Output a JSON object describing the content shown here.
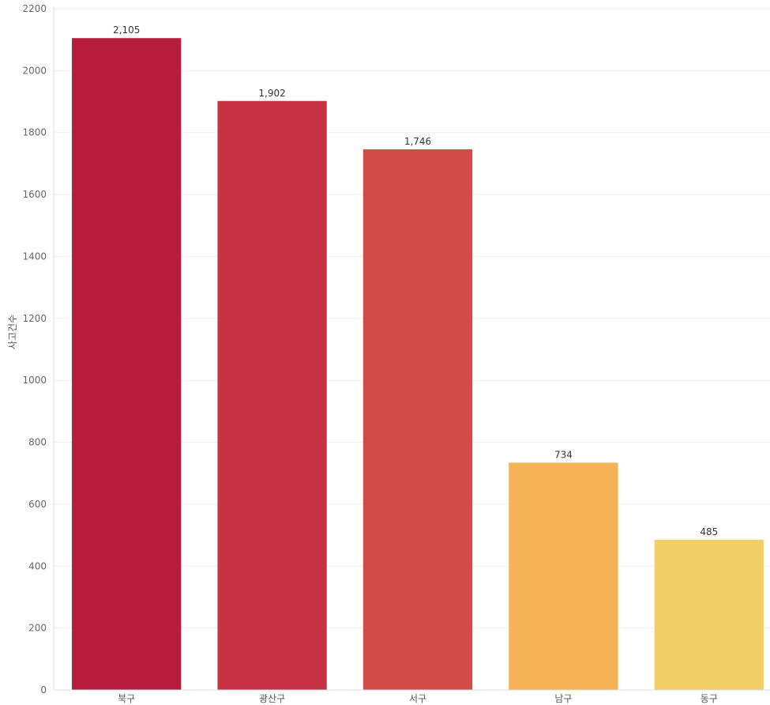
{
  "chart_data": {
    "type": "bar",
    "categories": [
      "북구",
      "광산구",
      "서구",
      "남구",
      "동구"
    ],
    "values": [
      2105,
      1902,
      1746,
      734,
      485
    ],
    "value_labels": [
      "2,105",
      "1,902",
      "1,746",
      "734",
      "485"
    ],
    "colors": [
      "#b61c3c",
      "#c83343",
      "#d44a46",
      "#f4b356",
      "#f1cf66"
    ],
    "title": "",
    "xlabel": "",
    "ylabel": "사고건수",
    "ylim": [
      0,
      2200
    ],
    "yticks": [
      0,
      200,
      400,
      600,
      800,
      1000,
      1200,
      1400,
      1600,
      1800,
      2000,
      2200
    ],
    "grid": true,
    "legend": "none"
  }
}
